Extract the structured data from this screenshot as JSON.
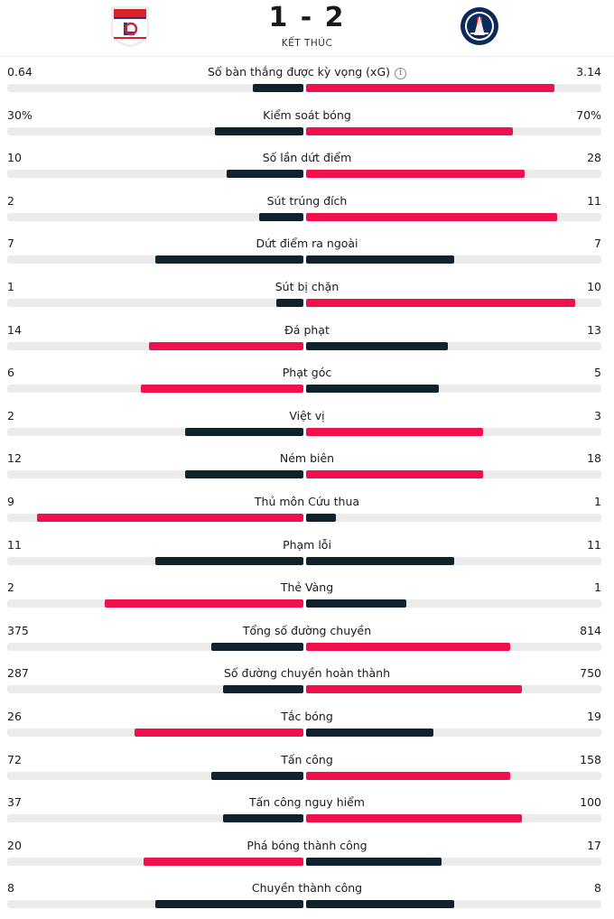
{
  "match": {
    "score": "1 - 2",
    "status": "KẾT THÚC",
    "home_logo_icon": "olympique-lyonnais-crest-icon",
    "away_logo_icon": "paris-saint-germain-crest-icon"
  },
  "colors": {
    "dark": "#10222e",
    "red": "#f0104c",
    "track": "#ebebeb"
  },
  "stats": [
    {
      "label": "Số bàn thắng được kỳ vọng (xG)",
      "home": "0.64",
      "away": "3.14",
      "home_share": 0.17,
      "away_share": 0.84,
      "leader": "away",
      "info": true
    },
    {
      "label": "Kiểm soát bóng",
      "home": "30%",
      "away": "70%",
      "home_share": 0.3,
      "away_share": 0.7,
      "leader": "away"
    },
    {
      "label": "Số lần dứt điểm",
      "home": "10",
      "away": "28",
      "home_share": 0.26,
      "away_share": 0.74,
      "leader": "away"
    },
    {
      "label": "Sút trúng đích",
      "home": "2",
      "away": "11",
      "home_share": 0.15,
      "away_share": 0.85,
      "leader": "away"
    },
    {
      "label": "Dứt điểm ra ngoài",
      "home": "7",
      "away": "7",
      "home_share": 0.5,
      "away_share": 0.5,
      "leader": "none"
    },
    {
      "label": "Sút bị chặn",
      "home": "1",
      "away": "10",
      "home_share": 0.09,
      "away_share": 0.91,
      "leader": "away"
    },
    {
      "label": "Đá phạt",
      "home": "14",
      "away": "13",
      "home_share": 0.52,
      "away_share": 0.48,
      "leader": "home"
    },
    {
      "label": "Phạt góc",
      "home": "6",
      "away": "5",
      "home_share": 0.55,
      "away_share": 0.45,
      "leader": "home"
    },
    {
      "label": "Việt vị",
      "home": "2",
      "away": "3",
      "home_share": 0.4,
      "away_share": 0.6,
      "leader": "away"
    },
    {
      "label": "Ném biên",
      "home": "12",
      "away": "18",
      "home_share": 0.4,
      "away_share": 0.6,
      "leader": "away"
    },
    {
      "label": "Thủ môn Cứu thua",
      "home": "9",
      "away": "1",
      "home_share": 0.9,
      "away_share": 0.1,
      "leader": "home"
    },
    {
      "label": "Phạm lỗi",
      "home": "11",
      "away": "11",
      "home_share": 0.5,
      "away_share": 0.5,
      "leader": "none"
    },
    {
      "label": "Thẻ Vàng",
      "home": "2",
      "away": "1",
      "home_share": 0.67,
      "away_share": 0.34,
      "leader": "home"
    },
    {
      "label": "Tổng số đường chuyền",
      "home": "375",
      "away": "814",
      "home_share": 0.31,
      "away_share": 0.69,
      "leader": "away"
    },
    {
      "label": "Số đường chuyền hoàn thành",
      "home": "287",
      "away": "750",
      "home_share": 0.27,
      "away_share": 0.73,
      "leader": "away"
    },
    {
      "label": "Tắc bóng",
      "home": "26",
      "away": "19",
      "home_share": 0.57,
      "away_share": 0.43,
      "leader": "home"
    },
    {
      "label": "Tấn công",
      "home": "72",
      "away": "158",
      "home_share": 0.31,
      "away_share": 0.69,
      "leader": "away"
    },
    {
      "label": "Tấn công nguy hiểm",
      "home": "37",
      "away": "100",
      "home_share": 0.27,
      "away_share": 0.73,
      "leader": "away"
    },
    {
      "label": "Phá bóng thành công",
      "home": "20",
      "away": "17",
      "home_share": 0.54,
      "away_share": 0.46,
      "leader": "home"
    },
    {
      "label": "Chuyền thành công",
      "home": "8",
      "away": "8",
      "home_share": 0.5,
      "away_share": 0.5,
      "leader": "none"
    }
  ]
}
